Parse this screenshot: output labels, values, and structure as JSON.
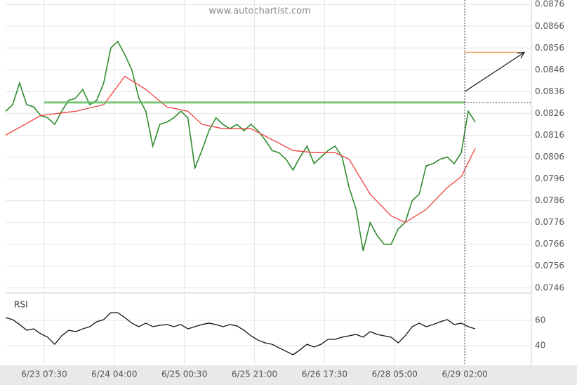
{
  "watermark": "www.autochartist.com",
  "chart_data": [
    {
      "type": "line",
      "xlim": [
        0,
        150
      ],
      "xticks": [
        {
          "value": 11,
          "label": "6/23 07:30"
        },
        {
          "value": 31,
          "label": "6/24 04:00"
        },
        {
          "value": 51,
          "label": "6/25 00:30"
        },
        {
          "value": 71,
          "label": "6/25 21:00"
        },
        {
          "value": 91,
          "label": "6/26 17:30"
        },
        {
          "value": 111,
          "label": "6/28 05:00"
        },
        {
          "value": 131,
          "label": "6/29 02:00"
        }
      ],
      "ylim": [
        0.0744,
        0.0878
      ],
      "yticks": [
        0.0746,
        0.0756,
        0.0766,
        0.0776,
        0.0786,
        0.0796,
        0.0806,
        0.0816,
        0.0826,
        0.0836,
        0.0846,
        0.0856,
        0.0866,
        0.0876
      ],
      "grid": true,
      "series": [
        {
          "color": "#2e8b2e",
          "x": [
            0,
            2,
            4,
            6,
            8,
            10,
            12,
            14,
            16,
            18,
            20,
            22,
            24,
            26,
            28,
            30,
            32,
            34,
            36,
            38,
            40,
            42,
            44,
            46,
            48,
            50,
            52,
            54,
            56,
            58,
            60,
            62,
            64,
            66,
            68,
            70,
            72,
            74,
            76,
            78,
            80,
            82,
            84,
            86,
            88,
            90,
            92,
            94,
            96,
            98,
            100,
            102,
            104,
            106,
            108,
            110,
            112,
            114,
            116,
            118,
            120,
            122,
            124,
            126,
            128,
            130,
            132,
            134
          ],
          "values": [
            0.0827,
            0.083,
            0.084,
            0.083,
            0.0829,
            0.0825,
            0.0824,
            0.0821,
            0.0827,
            0.0832,
            0.0833,
            0.0837,
            0.083,
            0.0832,
            0.084,
            0.0856,
            0.0859,
            0.0853,
            0.0846,
            0.0833,
            0.0827,
            0.0811,
            0.0821,
            0.0822,
            0.0824,
            0.0827,
            0.0824,
            0.0801,
            0.0809,
            0.0818,
            0.0824,
            0.0821,
            0.0819,
            0.0821,
            0.0818,
            0.0821,
            0.0818,
            0.0814,
            0.0809,
            0.0808,
            0.0805,
            0.08,
            0.0806,
            0.0811,
            0.0803,
            0.0806,
            0.0809,
            0.0811,
            0.0806,
            0.0792,
            0.0782,
            0.0763,
            0.0776,
            0.077,
            0.0766,
            0.0766,
            0.0773,
            0.0776,
            0.0786,
            0.0789,
            0.0802,
            0.0803,
            0.0805,
            0.0806,
            0.0803,
            0.0808,
            0.0827,
            0.0822
          ]
        },
        {
          "color": "#f04040",
          "x": [
            0,
            10,
            20,
            28,
            34,
            40,
            46,
            52,
            56,
            62,
            70,
            76,
            82,
            88,
            94,
            98,
            104,
            110,
            114,
            120,
            126,
            130,
            134
          ],
          "values": [
            0.0816,
            0.0825,
            0.0827,
            0.083,
            0.0843,
            0.0837,
            0.0829,
            0.0827,
            0.0821,
            0.0819,
            0.0819,
            0.0814,
            0.0809,
            0.0808,
            0.0808,
            0.0805,
            0.0789,
            0.0779,
            0.0776,
            0.0782,
            0.0792,
            0.0797,
            0.081
          ]
        }
      ],
      "support": {
        "x": [
          11,
          131
        ],
        "value": 0.0831,
        "color": "#5cb85c"
      },
      "target": {
        "x": [
          131,
          148
        ],
        "value": 0.0854,
        "color": "#f0a060"
      },
      "arrow": {
        "x": [
          131,
          148
        ],
        "values": [
          0.0836,
          0.0854
        ]
      }
    },
    {
      "type": "line",
      "title": "RSI",
      "xlim": [
        0,
        150
      ],
      "ylim": [
        25,
        80
      ],
      "yticks": [
        40,
        60
      ],
      "grid": true,
      "series": [
        {
          "color": "#111111",
          "x": [
            0,
            2,
            4,
            6,
            8,
            10,
            12,
            14,
            16,
            18,
            20,
            22,
            24,
            26,
            28,
            30,
            32,
            34,
            36,
            38,
            40,
            42,
            44,
            46,
            48,
            50,
            52,
            54,
            56,
            58,
            60,
            62,
            64,
            66,
            68,
            70,
            72,
            74,
            76,
            78,
            80,
            82,
            84,
            86,
            88,
            90,
            92,
            94,
            96,
            98,
            100,
            102,
            104,
            106,
            108,
            110,
            112,
            114,
            116,
            118,
            120,
            122,
            124,
            126,
            128,
            130,
            132,
            134
          ],
          "values": [
            62.2,
            60.6,
            56.7,
            52.2,
            53.3,
            49.4,
            46.7,
            41.1,
            47.8,
            52.2,
            51.1,
            53.3,
            55,
            58.9,
            60.6,
            66.1,
            66.1,
            62.2,
            57.8,
            55,
            57.8,
            55,
            56.1,
            56.7,
            55,
            56.7,
            53.3,
            55,
            56.7,
            57.8,
            56.7,
            55,
            56.7,
            55.6,
            52.2,
            47.8,
            44.4,
            42.2,
            41.1,
            38.3,
            35.6,
            32.8,
            36.7,
            41.1,
            38.9,
            41.1,
            45,
            45,
            46.7,
            47.8,
            48.9,
            46.7,
            51.1,
            48.9,
            47.8,
            46.7,
            42.2,
            47.8,
            55,
            57.8,
            55,
            56.7,
            58.9,
            60.6,
            56.7,
            57.8,
            55,
            53.3
          ]
        }
      ]
    }
  ]
}
